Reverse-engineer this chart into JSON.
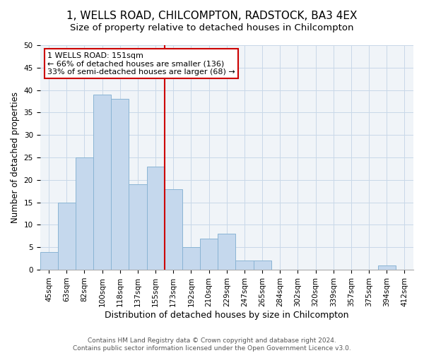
{
  "title": "1, WELLS ROAD, CHILCOMPTON, RADSTOCK, BA3 4EX",
  "subtitle": "Size of property relative to detached houses in Chilcompton",
  "xlabel": "Distribution of detached houses by size in Chilcompton",
  "ylabel": "Number of detached properties",
  "bar_labels": [
    "45sqm",
    "63sqm",
    "82sqm",
    "100sqm",
    "118sqm",
    "137sqm",
    "155sqm",
    "173sqm",
    "192sqm",
    "210sqm",
    "229sqm",
    "247sqm",
    "265sqm",
    "284sqm",
    "302sqm",
    "320sqm",
    "339sqm",
    "357sqm",
    "375sqm",
    "394sqm",
    "412sqm"
  ],
  "bar_values": [
    4,
    15,
    25,
    39,
    38,
    19,
    23,
    18,
    5,
    7,
    8,
    2,
    2,
    0,
    0,
    0,
    0,
    0,
    0,
    1,
    0
  ],
  "bar_color": "#c5d8ed",
  "bar_edge_color": "#8ab4d4",
  "vline_x_idx": 6,
  "vline_color": "#cc0000",
  "annotation_title": "1 WELLS ROAD: 151sqm",
  "annotation_line1": "← 66% of detached houses are smaller (136)",
  "annotation_line2": "33% of semi-detached houses are larger (68) →",
  "annotation_box_color": "#ffffff",
  "annotation_box_edge": "#cc0000",
  "ylim": [
    0,
    50
  ],
  "yticks": [
    0,
    5,
    10,
    15,
    20,
    25,
    30,
    35,
    40,
    45,
    50
  ],
  "footnote1": "Contains HM Land Registry data © Crown copyright and database right 2024.",
  "footnote2": "Contains public sector information licensed under the Open Government Licence v3.0.",
  "title_fontsize": 11,
  "subtitle_fontsize": 9.5,
  "xlabel_fontsize": 9,
  "ylabel_fontsize": 8.5,
  "tick_fontsize": 7.5,
  "annotation_fontsize": 8,
  "footnote_fontsize": 6.5,
  "bg_color": "#f0f4f8"
}
